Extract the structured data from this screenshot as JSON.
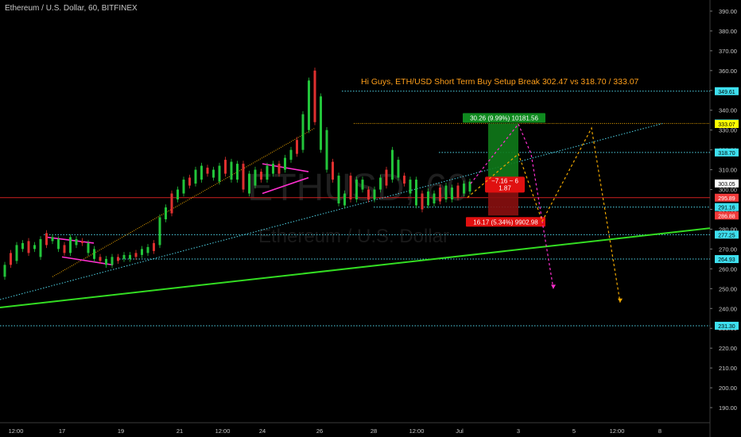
{
  "header": {
    "symbol_title": "Ethereum / U.S. Dollar, 60, BITFINEX"
  },
  "watermark": {
    "big": "ETHUSD, 60",
    "small": "Ethereum / U.S. Dollar"
  },
  "annotation": {
    "text": "Hi Guys, ETH/USD Short Term Buy Setup Break 302.47  vs 318.70 / 333.07",
    "color": "#ff9f1a"
  },
  "colors": {
    "background": "#000000",
    "cyan_dotted": "#4fd3e6",
    "orange_dotted": "#f2a900",
    "green_trend": "#33dd22",
    "magenta": "#ff2fd0",
    "red_line": "#d02020",
    "candle_up": "#22c43a",
    "candle_down": "#e0302f"
  },
  "chart_data": {
    "type": "candlestick",
    "ylim": [
      184,
      394
    ],
    "y_ticks": [
      390,
      380,
      370,
      360,
      350,
      340,
      330,
      320,
      310,
      300,
      290,
      280,
      270,
      260,
      250,
      240,
      230,
      220,
      210,
      200,
      190
    ],
    "x_tick_labels": [
      "12:00",
      "17",
      "19",
      "21",
      "12:00",
      "24",
      "26",
      "28",
      "12:00",
      "Jul",
      "3",
      "5",
      "12:00",
      "8"
    ],
    "candles": [
      [
        256,
        262
      ],
      [
        262,
        268
      ],
      [
        264,
        272
      ],
      [
        270,
        273
      ],
      [
        268,
        274
      ],
      [
        270,
        272
      ],
      [
        266,
        275
      ],
      [
        272,
        278
      ],
      [
        274,
        276
      ],
      [
        270,
        275
      ],
      [
        268,
        272
      ],
      [
        268,
        276
      ],
      [
        272,
        275
      ],
      [
        273,
        274
      ],
      [
        268,
        273
      ],
      [
        265,
        270
      ],
      [
        264,
        266
      ],
      [
        262,
        265
      ],
      [
        262,
        266
      ],
      [
        264,
        266
      ],
      [
        265,
        267
      ],
      [
        265,
        267
      ],
      [
        266,
        268
      ],
      [
        267,
        270
      ],
      [
        268,
        271
      ],
      [
        269,
        273
      ],
      [
        272,
        286
      ],
      [
        285,
        291
      ],
      [
        288,
        298
      ],
      [
        295,
        300
      ],
      [
        298,
        305
      ],
      [
        302,
        306
      ],
      [
        303,
        310
      ],
      [
        305,
        312
      ],
      [
        308,
        311
      ],
      [
        306,
        310
      ],
      [
        304,
        312
      ],
      [
        308,
        315
      ],
      [
        305,
        314
      ],
      [
        305,
        313
      ],
      [
        300,
        313
      ],
      [
        298,
        308
      ],
      [
        302,
        310
      ],
      [
        305,
        309
      ],
      [
        305,
        312
      ],
      [
        308,
        313
      ],
      [
        308,
        313
      ],
      [
        310,
        316
      ],
      [
        315,
        320
      ],
      [
        318,
        325
      ],
      [
        320,
        338
      ],
      [
        330,
        355
      ],
      [
        334,
        360
      ],
      [
        320,
        347
      ],
      [
        310,
        330
      ],
      [
        305,
        314
      ],
      [
        293,
        307
      ],
      [
        292,
        298
      ],
      [
        295,
        307
      ],
      [
        295,
        305
      ],
      [
        300,
        305
      ],
      [
        295,
        300
      ],
      [
        295,
        300
      ],
      [
        300,
        306
      ],
      [
        302,
        310
      ],
      [
        305,
        320
      ],
      [
        306,
        315
      ],
      [
        303,
        307
      ],
      [
        298,
        305
      ],
      [
        292,
        305
      ],
      [
        290,
        298
      ],
      [
        292,
        299
      ],
      [
        293,
        298
      ],
      [
        294,
        301
      ],
      [
        295,
        302
      ],
      [
        295,
        301
      ],
      [
        296,
        302
      ],
      [
        298,
        303
      ],
      [
        299,
        304
      ]
    ],
    "levels": [
      {
        "label": "349.61",
        "value": 349.61,
        "style": "cyan"
      },
      {
        "label": "333.31",
        "value": 333.31,
        "style": "orange"
      },
      {
        "label": "333.07",
        "value": 333.07,
        "style": "yellow"
      },
      {
        "label": "318.70",
        "value": 318.7,
        "style": "cyan"
      },
      {
        "label": "303.05",
        "value": 303.05,
        "style": "price"
      },
      {
        "label": "295.89",
        "value": 295.89,
        "style": "red"
      },
      {
        "label": "291.16",
        "value": 291.16,
        "style": "cyan"
      },
      {
        "label": "286.88",
        "value": 286.88,
        "style": "redtag"
      },
      {
        "label": "277.25",
        "value": 277.25,
        "style": "cyan"
      },
      {
        "label": "264.93",
        "value": 264.93,
        "style": "cyan"
      },
      {
        "label": "231.30",
        "value": 231.3,
        "style": "cyan"
      }
    ],
    "long_position": {
      "entry": 303.05,
      "target": 333.31,
      "stop": 286.88,
      "target_label": "30.26 (9.99%) 10181.56",
      "stop_label": "16.17 (5.34%) 9902.98",
      "ratio_label_1": "−7.16 ~ 6",
      "ratio_label_2": "1.87"
    },
    "trendlines": [
      {
        "name": "green-trend",
        "from": [
          "first",
          240.5
        ],
        "to": [
          "last",
          280.5
        ]
      },
      {
        "name": "cyan-rising",
        "from": [
          "first",
          244.5
        ],
        "to": [
          "end-8",
          333.3
        ]
      },
      {
        "name": "orange-rising",
        "from": [
          "candle-8",
          256
        ],
        "to": [
          "candle-52",
          331
        ]
      }
    ],
    "projections": [
      {
        "name": "magenta-path",
        "points": [
          [
            303,
            303
          ],
          [
            337,
            333
          ],
          [
            315,
            318
          ],
          [
            248,
            250
          ]
        ]
      },
      {
        "name": "orange-path",
        "points": [
          [
            303,
            296
          ],
          [
            337,
            318
          ],
          [
            282,
            284
          ],
          [
            332,
            331
          ],
          [
            242,
            243
          ]
        ]
      }
    ]
  }
}
